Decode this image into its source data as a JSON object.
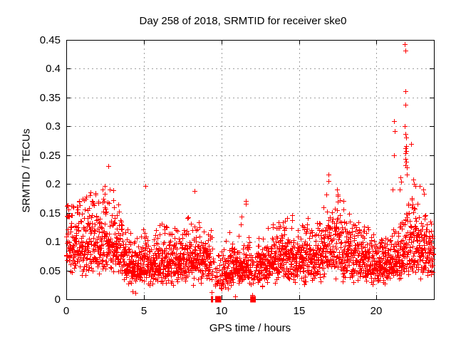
{
  "chart_data": {
    "type": "scatter",
    "title": "Day 258 of 2018, SRMTID for receiver ske0",
    "xlabel": "GPS time / hours",
    "ylabel": "SRMTID / TECUs",
    "xlim": [
      0,
      23.7
    ],
    "ylim": [
      0,
      0.45
    ],
    "xticks": [
      0,
      5,
      10,
      15,
      20
    ],
    "xtick_labels": [
      "0",
      "5",
      "10",
      "15",
      "20"
    ],
    "yticks": [
      0,
      0.05,
      0.1,
      0.15,
      0.2,
      0.25,
      0.3,
      0.35,
      0.4,
      0.45
    ],
    "ytick_labels": [
      "0",
      "0.05",
      "0.1",
      "0.15",
      "0.2",
      "0.25",
      "0.3",
      "0.35",
      "0.4",
      "0.45"
    ],
    "grid": {
      "on": true,
      "style": "dashed",
      "color": "#9e9e9e"
    },
    "border_color": "#000000",
    "background": "#ffffff",
    "marker": {
      "shape": "plus",
      "color": "#ff0000",
      "size": 7
    },
    "series": {
      "name": "SRMTID",
      "sampling": {
        "n": 2800,
        "tmin": 0.0,
        "tmax": 23.66,
        "seed": 258,
        "sigma": 0.34,
        "floor": 0.012
      },
      "median_envelope": [
        [
          0,
          0.095
        ],
        [
          0.7,
          0.1
        ],
        [
          1.5,
          0.095
        ],
        [
          2.3,
          0.1
        ],
        [
          3.0,
          0.1
        ],
        [
          3.6,
          0.075
        ],
        [
          4.3,
          0.052
        ],
        [
          5.1,
          0.07
        ],
        [
          5.6,
          0.062
        ],
        [
          6.5,
          0.068
        ],
        [
          7.2,
          0.062
        ],
        [
          8.3,
          0.072
        ],
        [
          9.2,
          0.07
        ],
        [
          9.7,
          0.045
        ],
        [
          10.3,
          0.05
        ],
        [
          10.9,
          0.058
        ],
        [
          11.6,
          0.06
        ],
        [
          12.1,
          0.05
        ],
        [
          12.9,
          0.062
        ],
        [
          13.6,
          0.07
        ],
        [
          14.3,
          0.072
        ],
        [
          15.2,
          0.065
        ],
        [
          16.1,
          0.07
        ],
        [
          16.9,
          0.09
        ],
        [
          17.5,
          0.095
        ],
        [
          18.2,
          0.08
        ],
        [
          19.0,
          0.072
        ],
        [
          19.8,
          0.062
        ],
        [
          20.6,
          0.058
        ],
        [
          21.3,
          0.068
        ],
        [
          21.9,
          0.09
        ],
        [
          22.5,
          0.095
        ],
        [
          23.1,
          0.082
        ],
        [
          23.66,
          0.08
        ]
      ],
      "max_envelope": [
        [
          0,
          0.165
        ],
        [
          0.8,
          0.17
        ],
        [
          1.4,
          0.185
        ],
        [
          2.2,
          0.195
        ],
        [
          2.72,
          0.2
        ],
        [
          3.1,
          0.2
        ],
        [
          3.6,
          0.135
        ],
        [
          4.3,
          0.11
        ],
        [
          5.12,
          0.195
        ],
        [
          5.6,
          0.13
        ],
        [
          6.5,
          0.145
        ],
        [
          7.1,
          0.12
        ],
        [
          7.6,
          0.125
        ],
        [
          8.28,
          0.19
        ],
        [
          8.7,
          0.13
        ],
        [
          9.2,
          0.142
        ],
        [
          9.6,
          0.095
        ],
        [
          10.1,
          0.085
        ],
        [
          10.5,
          0.135
        ],
        [
          11.0,
          0.115
        ],
        [
          11.58,
          0.17
        ],
        [
          12.2,
          0.105
        ],
        [
          12.9,
          0.125
        ],
        [
          13.5,
          0.14
        ],
        [
          14.2,
          0.155
        ],
        [
          15.2,
          0.148
        ],
        [
          16.0,
          0.14
        ],
        [
          16.55,
          0.165
        ],
        [
          16.9,
          0.215
        ],
        [
          17.5,
          0.19
        ],
        [
          18.1,
          0.16
        ],
        [
          18.8,
          0.135
        ],
        [
          19.5,
          0.125
        ],
        [
          20.2,
          0.105
        ],
        [
          20.9,
          0.115
        ],
        [
          21.5,
          0.21
        ],
        [
          21.85,
          0.24
        ],
        [
          22.1,
          0.2
        ],
        [
          22.45,
          0.22
        ],
        [
          23.1,
          0.185
        ],
        [
          23.4,
          0.15
        ],
        [
          23.66,
          0.125
        ]
      ],
      "outliers_high": [
        [
          2.72,
          0.231
        ],
        [
          5.12,
          0.196
        ],
        [
          8.28,
          0.188
        ],
        [
          11.58,
          0.17
        ],
        [
          16.88,
          0.216
        ],
        [
          16.9,
          0.205
        ],
        [
          17.45,
          0.19
        ],
        [
          21.05,
          0.19
        ],
        [
          21.12,
          0.309
        ],
        [
          21.14,
          0.25
        ],
        [
          21.16,
          0.292
        ],
        [
          21.5,
          0.19
        ],
        [
          21.55,
          0.212
        ],
        [
          21.6,
          0.204
        ],
        [
          21.82,
          0.443
        ],
        [
          21.85,
          0.431
        ],
        [
          21.88,
          0.361
        ],
        [
          21.86,
          0.338
        ],
        [
          21.83,
          0.301
        ],
        [
          21.87,
          0.287
        ],
        [
          21.93,
          0.281
        ],
        [
          21.9,
          0.266
        ],
        [
          21.86,
          0.262
        ],
        [
          21.89,
          0.257
        ],
        [
          21.84,
          0.254
        ],
        [
          21.88,
          0.244
        ],
        [
          21.91,
          0.238
        ],
        [
          21.86,
          0.232
        ],
        [
          21.94,
          0.229
        ],
        [
          22.22,
          0.27
        ],
        [
          22.35,
          0.208
        ],
        [
          22.4,
          0.2
        ],
        [
          22.5,
          0.196
        ],
        [
          23.0,
          0.19
        ],
        [
          23.05,
          0.183
        ]
      ],
      "outliers_low": [
        [
          4.25,
          0.013
        ],
        [
          4.45,
          0.011
        ],
        [
          9.35,
          0.012
        ],
        [
          10.88,
          0.005
        ],
        [
          12.0,
          0.008
        ]
      ],
      "gaps": [
        {
          "range": [
            9.3,
            10.0
          ],
          "drop": 0.62
        },
        {
          "range": [
            11.9,
            12.25
          ],
          "drop": 0.6
        }
      ],
      "zero_runs": [
        [
          9.33,
          9.47
        ],
        [
          9.6,
          9.99
        ],
        [
          11.86,
          12.22
        ]
      ]
    }
  }
}
